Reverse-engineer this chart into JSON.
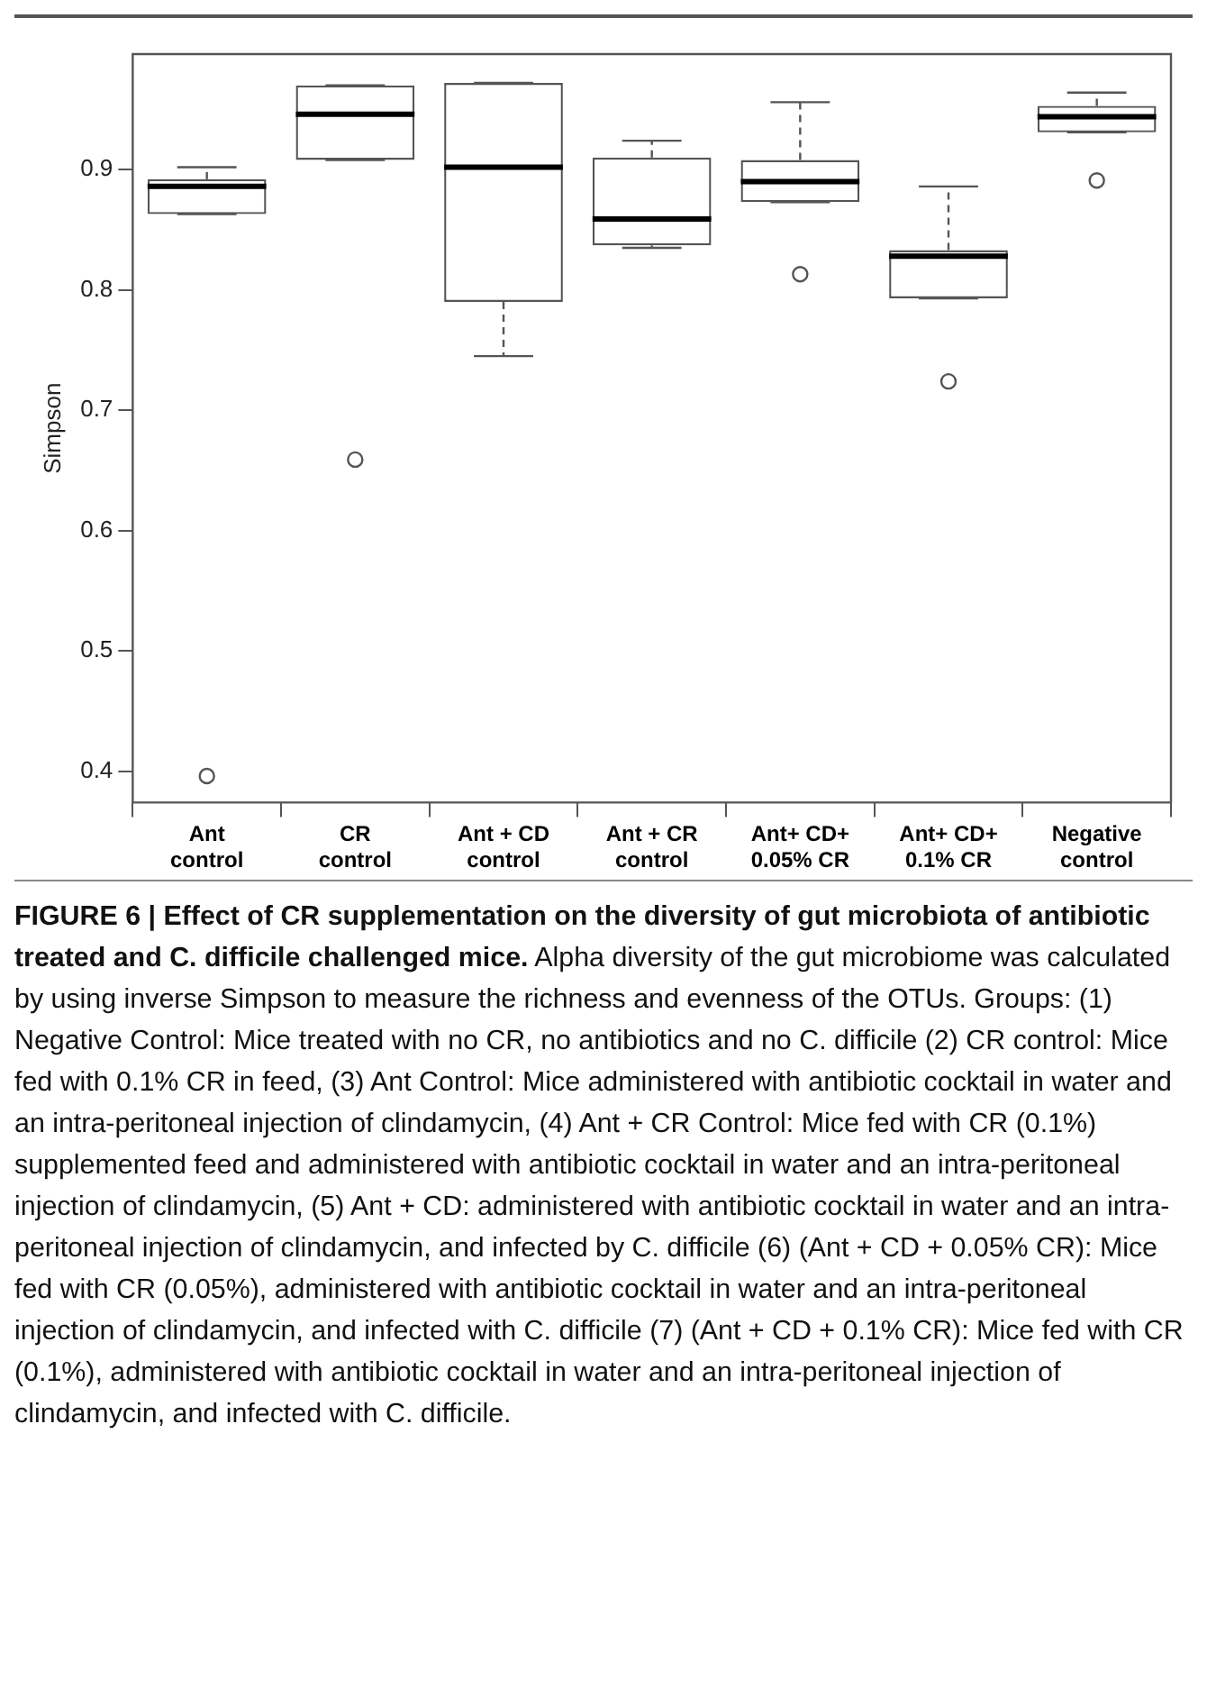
{
  "chart_data": {
    "type": "box",
    "title": "FIGURE 6 | Effect of CR supplementation on the diversity of gut microbiota of antibiotic treated and C. difficile challenged mice.",
    "ylabel": "Simpson",
    "categories": [
      "Ant control",
      "CR control",
      "Ant + CD control",
      "Ant + CR control",
      "Ant+ CD+ 0.05% CR",
      "Ant+ CD+ 0.1% CR",
      "Negative control"
    ],
    "color": "#555555",
    "boxes": [
      {
        "low": 0.863,
        "q1": 0.863,
        "median": 0.886,
        "q3": 0.892,
        "high": 0.902,
        "outliers": [
          0.396
        ]
      },
      {
        "low": 0.908,
        "q1": 0.908,
        "median": 0.946,
        "q3": 0.97,
        "high": 0.97,
        "outliers": [
          0.659
        ]
      },
      {
        "low": 0.745,
        "q1": 0.79,
        "median": 0.902,
        "q3": 0.972,
        "high": 0.972
      },
      {
        "low": 0.835,
        "q1": 0.837,
        "median": 0.859,
        "q3": 0.91,
        "high": 0.924
      },
      {
        "low": 0.873,
        "q1": 0.873,
        "median": 0.89,
        "q3": 0.908,
        "high": 0.956,
        "outliers": [
          0.813
        ]
      },
      {
        "low": 0.793,
        "q1": 0.793,
        "median": 0.828,
        "q3": 0.833,
        "high": 0.886,
        "outliers": [
          0.724
        ]
      },
      {
        "low": 0.931,
        "q1": 0.931,
        "median": 0.944,
        "q3": 0.953,
        "high": 0.964,
        "outliers": [
          0.891
        ]
      }
    ],
    "ylim": [
      0.374,
      0.996
    ],
    "yticks": [
      0.4,
      0.5,
      0.6,
      0.7,
      0.8,
      0.9
    ],
    "grid": false,
    "annotations": [
      "Alpha diversity of the gut microbiome was calculated by using inverse Simpson to measure the richness and evenness of the OTUs. Groups: (1) Negative Control: Mice treated with no CR, no antibiotics and no C. difficile (2) CR control: Mice fed with 0.1% CR in feed, (3) Ant Control: Mice administered with antibiotic cocktail in water and an intra-peritoneal injection of clindamycin, (4) Ant + CR Control: Mice fed with CR (0.1%) supplemented feed and administered with antibiotic cocktail in water and an intra-peritoneal injection of clindamycin, (5) Ant + CD: administered with antibiotic cocktail in water and an intra-peritoneal injection of clindamycin, and infected by C. difficile (6) (Ant + CD + 0.05% CR): Mice fed with CR (0.05%), administered with antibiotic cocktail in water and an intra-peritoneal injection of clindamycin, and infected with C. difficile (7) (Ant + CD + 0.1% CR): Mice fed with CR (0.1%), administered with antibiotic cocktail in water and an intra-peritoneal injection of clindamycin, and infected with C. difficile."
    ]
  }
}
